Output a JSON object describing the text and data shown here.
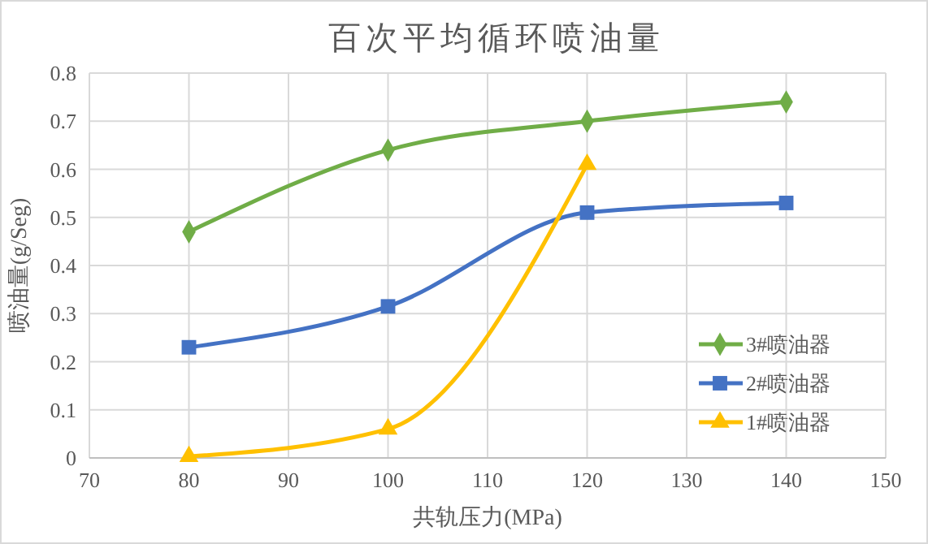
{
  "chart_data": {
    "type": "line",
    "title": "百次平均循环喷油量",
    "xlabel": "共轨压力(MPa)",
    "ylabel": "喷油量(g/Seg)",
    "x": [
      80,
      100,
      120,
      140
    ],
    "series": [
      {
        "name": "3#喷油器",
        "color": "#70ad47",
        "marker": "diamond",
        "values": [
          0.47,
          0.64,
          0.7,
          0.74
        ]
      },
      {
        "name": "2#喷油器",
        "color": "#4472c4",
        "marker": "square",
        "values": [
          0.23,
          0.315,
          0.51,
          0.53
        ]
      },
      {
        "name": "1#喷油器",
        "color": "#ffc000",
        "marker": "triangle",
        "values": [
          0.003,
          0.06,
          0.61,
          null
        ]
      }
    ],
    "xlim": [
      70,
      150
    ],
    "xticks": [
      70,
      80,
      90,
      100,
      110,
      120,
      130,
      140,
      150
    ],
    "ylim": [
      0,
      0.8
    ],
    "yticks": [
      0,
      0.1,
      0.2,
      0.3,
      0.4,
      0.5,
      0.6,
      0.7,
      0.8
    ],
    "grid": true,
    "legend": "bottom right",
    "line_style": "solid"
  }
}
